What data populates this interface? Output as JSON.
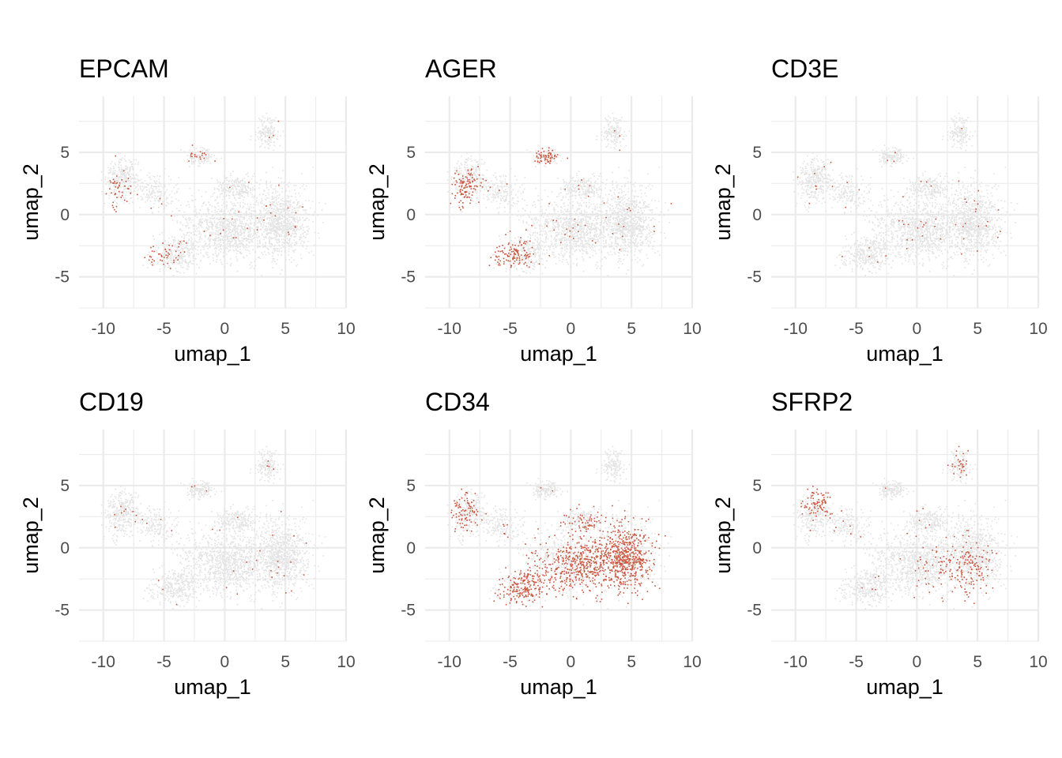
{
  "chart_data": [
    {
      "type": "scatter",
      "title": "EPCAM",
      "xlabel": "umap_1",
      "ylabel": "umap_2",
      "xlim": [
        -12,
        10
      ],
      "ylim": [
        -7.5,
        9.5
      ],
      "x_ticks": [
        "-10",
        "-5",
        "0",
        "5",
        "10"
      ],
      "y_ticks": [
        "-5",
        "0",
        "5"
      ],
      "grid": true,
      "colors": {
        "low": "#e3e3e3",
        "high": "#c8553d"
      },
      "expression_regions": [
        {
          "x": -9,
          "y": 1.2,
          "sx": 0.7,
          "sy": 1.0,
          "level": 0.6
        },
        {
          "x": -6,
          "y": -3.0,
          "sx": 1.0,
          "sy": 1.0,
          "level": 0.7
        },
        {
          "x": -2.5,
          "y": 4.8,
          "sx": 1.2,
          "sy": 0.6,
          "level": 0.25
        }
      ]
    },
    {
      "type": "scatter",
      "title": "AGER",
      "xlabel": "umap_1",
      "ylabel": "umap_2",
      "xlim": [
        -12,
        10
      ],
      "ylim": [
        -7.5,
        9.5
      ],
      "x_ticks": [
        "-10",
        "-5",
        "0",
        "5",
        "10"
      ],
      "y_ticks": [
        "-5",
        "0",
        "5"
      ],
      "grid": true,
      "colors": {
        "low": "#e3e3e3",
        "high": "#c8553d"
      },
      "expression_regions": [
        {
          "x": -9,
          "y": 1.2,
          "sx": 1.0,
          "sy": 1.5,
          "level": 0.85
        },
        {
          "x": -5.8,
          "y": -3.0,
          "sx": 1.3,
          "sy": 1.2,
          "level": 0.9
        },
        {
          "x": -2.2,
          "y": 4.8,
          "sx": 1.0,
          "sy": 0.8,
          "level": 0.55
        }
      ]
    },
    {
      "type": "scatter",
      "title": "CD3E",
      "xlabel": "umap_1",
      "ylabel": "umap_2",
      "xlim": [
        -12,
        10
      ],
      "ylim": [
        -7.5,
        9.5
      ],
      "x_ticks": [
        "-10",
        "-5",
        "0",
        "5",
        "10"
      ],
      "y_ticks": [
        "-5",
        "0",
        "5"
      ],
      "grid": true,
      "colors": {
        "low": "#e3e3e3",
        "high": "#c8553d"
      },
      "expression_regions": []
    },
    {
      "type": "scatter",
      "title": "CD19",
      "xlabel": "umap_1",
      "ylabel": "umap_2",
      "xlim": [
        -12,
        10
      ],
      "ylim": [
        -7.5,
        9.5
      ],
      "x_ticks": [
        "-10",
        "-5",
        "0",
        "5",
        "10"
      ],
      "y_ticks": [
        "-5",
        "0",
        "5"
      ],
      "grid": true,
      "colors": {
        "low": "#e3e3e3",
        "high": "#c8553d"
      },
      "expression_regions": []
    },
    {
      "type": "scatter",
      "title": "CD34",
      "xlabel": "umap_1",
      "ylabel": "umap_2",
      "xlim": [
        -12,
        10
      ],
      "ylim": [
        -7.5,
        9.5
      ],
      "x_ticks": [
        "-10",
        "-5",
        "0",
        "5",
        "10"
      ],
      "y_ticks": [
        "-5",
        "0",
        "5"
      ],
      "grid": true,
      "colors": {
        "low": "#e3e3e3",
        "high": "#c8553d"
      },
      "expression_regions": [
        {
          "x": 3.5,
          "y": -1.5,
          "sx": 3.0,
          "sy": 2.8,
          "level": 0.85
        },
        {
          "x": -3.0,
          "y": -3.0,
          "sx": 3.2,
          "sy": 1.8,
          "level": 0.7
        },
        {
          "x": -9.5,
          "y": 3.5,
          "sx": 1.0,
          "sy": 2.2,
          "level": 0.45
        }
      ]
    },
    {
      "type": "scatter",
      "title": "SFRP2",
      "xlabel": "umap_1",
      "ylabel": "umap_2",
      "xlim": [
        -12,
        10
      ],
      "ylim": [
        -7.5,
        9.5
      ],
      "x_ticks": [
        "-10",
        "-5",
        "0",
        "5",
        "10"
      ],
      "y_ticks": [
        "-5",
        "0",
        "5"
      ],
      "grid": true,
      "colors": {
        "low": "#e3e3e3",
        "high": "#c8553d"
      },
      "expression_regions": [
        {
          "x": -8.5,
          "y": 4.8,
          "sx": 1.5,
          "sy": 1.1,
          "level": 0.95
        },
        {
          "x": 3.5,
          "y": -3.0,
          "sx": 2.0,
          "sy": 2.0,
          "level": 0.35
        },
        {
          "x": 3.5,
          "y": 7.0,
          "sx": 0.8,
          "sy": 1.0,
          "level": 0.3
        }
      ]
    }
  ]
}
